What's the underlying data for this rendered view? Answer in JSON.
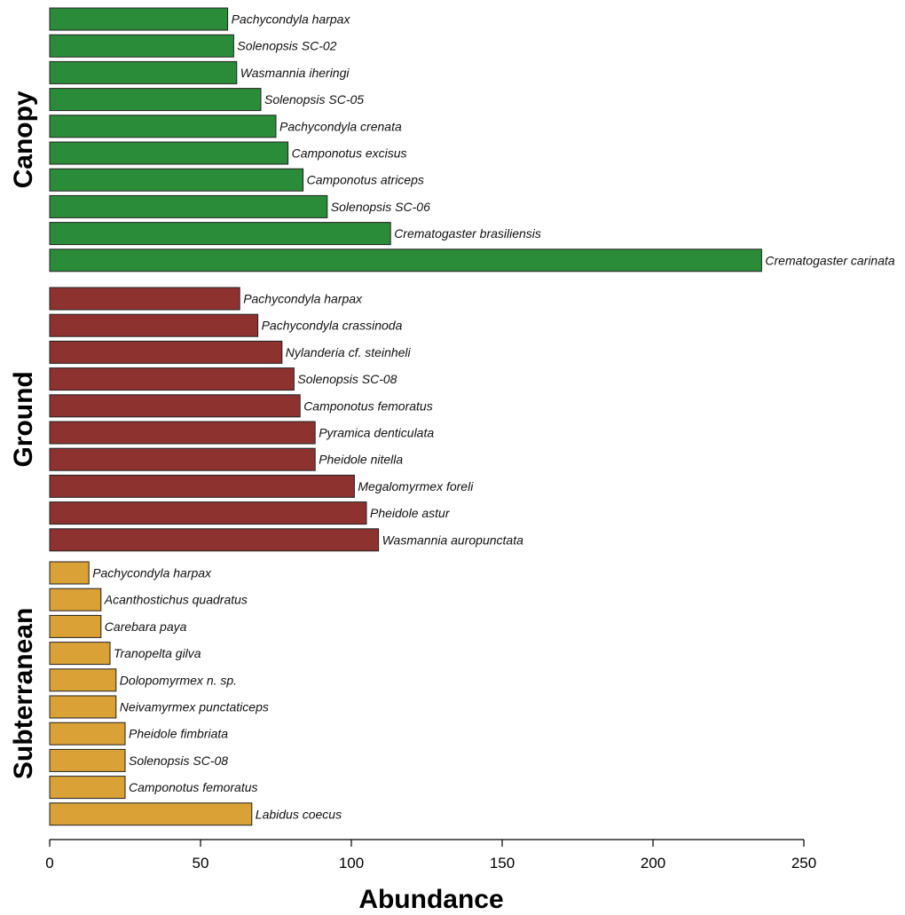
{
  "chart_data": {
    "type": "bar",
    "orientation": "horizontal",
    "xlabel": "Abundance",
    "xlim": [
      0,
      250
    ],
    "xticks": [
      0,
      50,
      100,
      150,
      200,
      250
    ],
    "grid": false,
    "groups": [
      {
        "name": "Canopy",
        "color": "#2a8c38",
        "bars": [
          {
            "label": "Pachycondyla harpax",
            "value": 59
          },
          {
            "label": "Solenopsis SC-02",
            "value": 61
          },
          {
            "label": "Wasmannia iheringi",
            "value": 62
          },
          {
            "label": "Solenopsis SC-05",
            "value": 70
          },
          {
            "label": "Pachycondyla crenata",
            "value": 75
          },
          {
            "label": "Camponotus excisus",
            "value": 79
          },
          {
            "label": "Camponotus atriceps",
            "value": 84
          },
          {
            "label": "Solenopsis SC-06",
            "value": 92
          },
          {
            "label": "Crematogaster brasiliensis",
            "value": 113
          },
          {
            "label": "Crematogaster carinata",
            "value": 236
          }
        ]
      },
      {
        "name": "Ground",
        "color": "#8e3230",
        "bars": [
          {
            "label": "Pachycondyla harpax",
            "value": 63
          },
          {
            "label": "Pachycondyla crassinoda",
            "value": 69
          },
          {
            "label": "Nylanderia cf. steinheli",
            "value": 77
          },
          {
            "label": "Solenopsis SC-08",
            "value": 81
          },
          {
            "label": "Camponotus femoratus",
            "value": 83
          },
          {
            "label": "Pyramica denticulata",
            "value": 88
          },
          {
            "label": "Pheidole nitella",
            "value": 88
          },
          {
            "label": "Megalomyrmex foreli",
            "value": 101
          },
          {
            "label": "Pheidole astur",
            "value": 105
          },
          {
            "label": "Wasmannia auropunctata",
            "value": 109
          }
        ]
      },
      {
        "name": "Subterranean",
        "color": "#d9a136",
        "bars": [
          {
            "label": "Pachycondyla harpax",
            "value": 13
          },
          {
            "label": "Acanthostichus quadratus",
            "value": 17
          },
          {
            "label": "Carebara paya",
            "value": 17
          },
          {
            "label": "Tranopelta gilva",
            "value": 20
          },
          {
            "label": "Dolopomyrmex n. sp.",
            "value": 22
          },
          {
            "label": "Neivamyrmex punctaticeps",
            "value": 22
          },
          {
            "label": "Pheidole fimbriata",
            "value": 25
          },
          {
            "label": "Solenopsis SC-08",
            "value": 25
          },
          {
            "label": "Camponotus femoratus",
            "value": 25
          },
          {
            "label": "Labidus coecus",
            "value": 67
          }
        ]
      }
    ]
  }
}
